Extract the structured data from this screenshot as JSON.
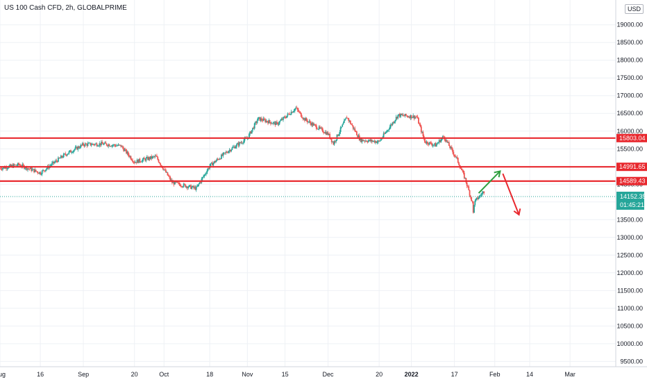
{
  "header": {
    "title": "US 100 Cash CFD, 2h, GLOBALPRIME",
    "currency": "USD"
  },
  "colors": {
    "up": "#26a69a",
    "down": "#ef5350",
    "level": "#e8282e",
    "arrow_up": "#2e9e3e",
    "arrow_down": "#e8282e",
    "grid": "#eef1f5",
    "price_tag": "#26a69a"
  },
  "chart_data": {
    "type": "candlestick",
    "symbol": "US 100 Cash CFD",
    "interval": "2h",
    "ylim": [
      9350,
      19700
    ],
    "y_ticks": [
      9500,
      10000,
      10500,
      11000,
      11500,
      12000,
      12500,
      13000,
      13500,
      14000,
      14500,
      15000,
      15500,
      16000,
      16500,
      17000,
      17500,
      18000,
      18500,
      19000
    ],
    "y_tick_labels": [
      "9500.00",
      "10000.00",
      "10500.00",
      "11000.00",
      "11500.00",
      "12000.00",
      "12500.00",
      "13000.00",
      "13500.00",
      "14000.00",
      "14500.00",
      "15000.00",
      "15500.00",
      "16000.00",
      "16500.00",
      "17000.00",
      "17500.00",
      "18000.00",
      "18500.00",
      "19000.00"
    ],
    "x_labels": [
      {
        "text": "Aug",
        "date": "2021-08-01"
      },
      {
        "text": "16",
        "date": "2021-08-16"
      },
      {
        "text": "Sep",
        "date": "2021-09-01"
      },
      {
        "text": "20",
        "date": "2021-09-20"
      },
      {
        "text": "Oct",
        "date": "2021-10-01"
      },
      {
        "text": "18",
        "date": "2021-10-18"
      },
      {
        "text": "Nov",
        "date": "2021-11-01"
      },
      {
        "text": "15",
        "date": "2021-11-15"
      },
      {
        "text": "Dec",
        "date": "2021-12-01"
      },
      {
        "text": "20",
        "date": "2021-12-20"
      },
      {
        "text": "2022",
        "date": "2022-01-01",
        "bold": true
      },
      {
        "text": "17",
        "date": "2022-01-17"
      },
      {
        "text": "Feb",
        "date": "2022-02-01"
      },
      {
        "text": "14",
        "date": "2022-02-14"
      },
      {
        "text": "Mar",
        "date": "2022-03-01"
      }
    ],
    "x_range": [
      "2021-08-01",
      "2022-03-18"
    ],
    "anchors": [
      {
        "date": "2021-08-01",
        "price": 14950
      },
      {
        "date": "2021-08-08",
        "price": 15050
      },
      {
        "date": "2021-08-16",
        "price": 14820
      },
      {
        "date": "2021-08-25",
        "price": 15330
      },
      {
        "date": "2021-09-01",
        "price": 15620
      },
      {
        "date": "2021-09-08",
        "price": 15640
      },
      {
        "date": "2021-09-15",
        "price": 15580
      },
      {
        "date": "2021-09-20",
        "price": 15130
      },
      {
        "date": "2021-09-28",
        "price": 15280
      },
      {
        "date": "2021-10-04",
        "price": 14550
      },
      {
        "date": "2021-10-13",
        "price": 14380
      },
      {
        "date": "2021-10-18",
        "price": 15020
      },
      {
        "date": "2021-10-25",
        "price": 15450
      },
      {
        "date": "2021-11-01",
        "price": 15800
      },
      {
        "date": "2021-11-05",
        "price": 16350
      },
      {
        "date": "2021-11-12",
        "price": 16200
      },
      {
        "date": "2021-11-19",
        "price": 16650
      },
      {
        "date": "2021-11-22",
        "price": 16350
      },
      {
        "date": "2021-11-26",
        "price": 16150
      },
      {
        "date": "2021-12-01",
        "price": 15920
      },
      {
        "date": "2021-12-03",
        "price": 15650
      },
      {
        "date": "2021-12-08",
        "price": 16400
      },
      {
        "date": "2021-12-13",
        "price": 15750
      },
      {
        "date": "2021-12-20",
        "price": 15700
      },
      {
        "date": "2021-12-27",
        "price": 16450
      },
      {
        "date": "2022-01-03",
        "price": 16400
      },
      {
        "date": "2022-01-06",
        "price": 15700
      },
      {
        "date": "2022-01-10",
        "price": 15600
      },
      {
        "date": "2022-01-13",
        "price": 15850
      },
      {
        "date": "2022-01-18",
        "price": 15200
      },
      {
        "date": "2022-01-21",
        "price": 14650
      },
      {
        "date": "2022-01-24",
        "price": 13900
      },
      {
        "date": "2022-01-25",
        "price": 14050
      },
      {
        "date": "2022-01-28",
        "price": 14300
      }
    ],
    "levels": [
      {
        "value": 15803.04,
        "label": "15803.04"
      },
      {
        "value": 14991.65,
        "label": "14991.65"
      },
      {
        "value": 14589.43,
        "label": "14589.43"
      }
    ],
    "current_price": {
      "value": 14152.35,
      "label": "14152.35",
      "countdown": "01:45:21"
    },
    "projections": [
      {
        "name": "up",
        "from": {
          "date": "2022-01-26",
          "price": 14250
        },
        "to": {
          "date": "2022-02-03",
          "price": 14870
        }
      },
      {
        "name": "down",
        "from": {
          "date": "2022-02-04",
          "price": 14800
        },
        "to": {
          "date": "2022-02-10",
          "price": 13640
        }
      }
    ],
    "grid": true
  }
}
